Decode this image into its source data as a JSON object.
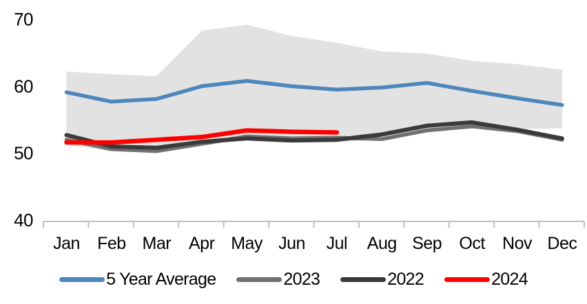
{
  "chart_data": {
    "type": "line",
    "title": "",
    "xlabel": "",
    "ylabel": "",
    "categories": [
      "Jan",
      "Feb",
      "Mar",
      "Apr",
      "May",
      "Jun",
      "Jul",
      "Aug",
      "Sep",
      "Oct",
      "Nov",
      "Dec"
    ],
    "y_ticks": [
      40,
      50,
      60,
      70
    ],
    "ylim": [
      40,
      70
    ],
    "grid": "off",
    "legend_position": "bottom",
    "axis_color": "#BFBFBF",
    "text_color": "#000000",
    "band": {
      "name": "5-year-range",
      "color": "#E2E2E2",
      "top": [
        62.2,
        61.8,
        61.5,
        68.3,
        69.2,
        67.5,
        66.5,
        65.2,
        64.9,
        63.8,
        63.3,
        62.5
      ],
      "bottom": [
        51.3,
        50.3,
        50.1,
        51.3,
        51.9,
        51.7,
        51.7,
        52.0,
        53.3,
        54.0,
        53.6,
        53.7
      ]
    },
    "series": [
      {
        "name": "5 Year Average",
        "color": "#4E86BC",
        "stroke_width": 5.5,
        "values": [
          59.1,
          57.7,
          58.1,
          60.0,
          60.8,
          60.0,
          59.5,
          59.8,
          60.5,
          59.3,
          58.2,
          57.2
        ]
      },
      {
        "name": "2023",
        "color": "#707070",
        "stroke_width": 5.5,
        "values": [
          52.0,
          50.6,
          50.3,
          51.4,
          52.5,
          52.2,
          52.3,
          52.1,
          53.4,
          54.0,
          53.3,
          52.0
        ]
      },
      {
        "name": "2022",
        "color": "#3A3A3A",
        "stroke_width": 6,
        "values": [
          52.7,
          51.0,
          50.8,
          51.7,
          52.2,
          51.9,
          52.0,
          52.8,
          54.1,
          54.6,
          53.5,
          52.2
        ]
      },
      {
        "name": "2024",
        "color": "#FF0000",
        "stroke_width": 6.5,
        "values": [
          51.6,
          51.6,
          52.0,
          52.4,
          53.4,
          53.2,
          53.1,
          null,
          null,
          null,
          null,
          null
        ]
      }
    ]
  }
}
